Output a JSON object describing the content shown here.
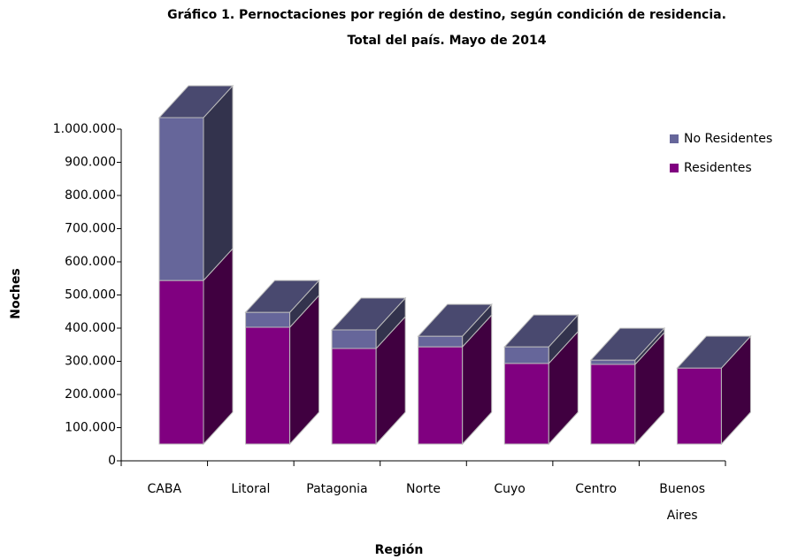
{
  "chart_data": {
    "type": "bar3d_stacked",
    "title": [
      "Gráfico 1. Pernoctaciones por región de destino, según condición de residencia.",
      "Total del país. Mayo de 2014"
    ],
    "x_label": "Región",
    "y_label": "Noches",
    "categories": [
      "CABA",
      "Litoral",
      "Patagonia",
      "Norte",
      "Cuyo",
      "Centro",
      "Buenos Aires"
    ],
    "series": [
      {
        "name": "No Residentes",
        "color": "#66669a",
        "values": [
          491000,
          45000,
          56000,
          32000,
          50000,
          13000,
          0
        ]
      },
      {
        "name": "Residentes",
        "color": "#800080",
        "values": [
          493000,
          352000,
          288000,
          293000,
          243000,
          240000,
          229000
        ]
      }
    ],
    "ylim": [
      0,
      1000000
    ],
    "yticks": [
      0,
      {
        "value": 100000,
        "label": "100.000"
      },
      {
        "value": 200000,
        "label": "200.000"
      },
      {
        "value": 300000,
        "label": "300.000"
      },
      {
        "value": 400000,
        "label": "400.000"
      },
      {
        "value": 500000,
        "label": "500.000"
      },
      {
        "value": 600000,
        "label": "600.000"
      },
      {
        "value": 700000,
        "label": "700.000"
      },
      {
        "value": 800000,
        "label": "800.000"
      },
      {
        "value": 900000,
        "label": "900.000"
      },
      {
        "value": 1000000,
        "label": "1.000.000"
      }
    ],
    "legend": "upper right"
  }
}
